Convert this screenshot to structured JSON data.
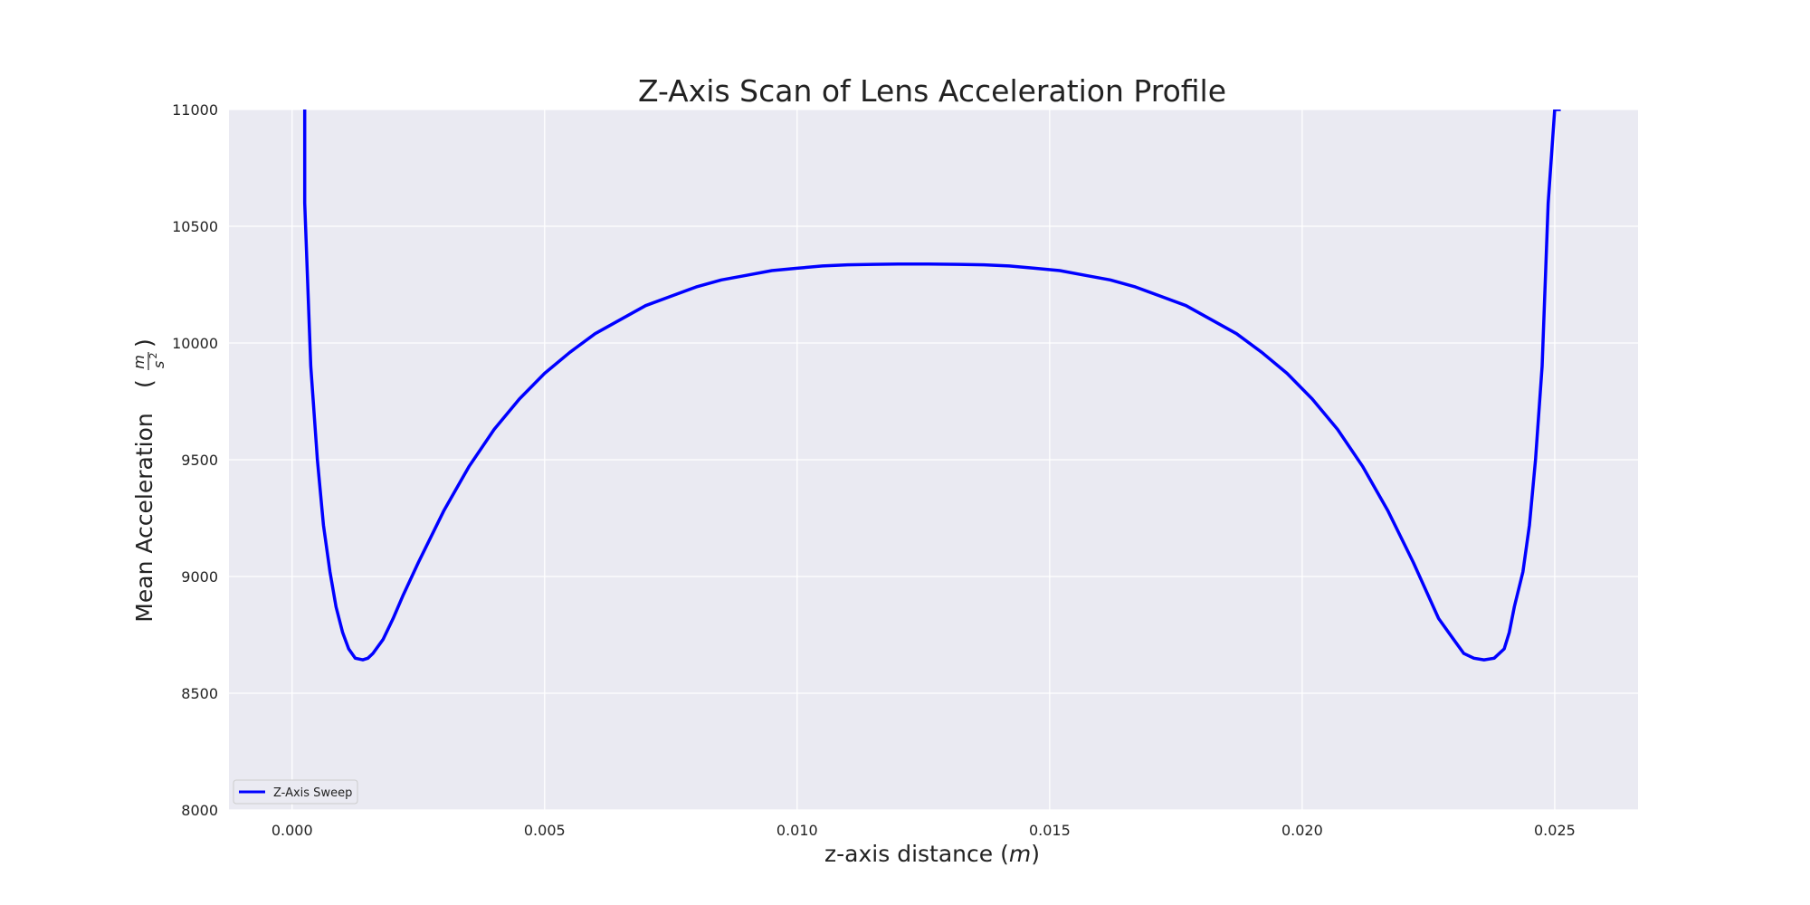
{
  "chart_data": {
    "type": "line",
    "title": "Z-Axis Scan of Lens Acceleration Profile",
    "xlabel": "z-axis distance",
    "xlabel_unit": "m",
    "ylabel": "Mean Acceleration",
    "ylabel_unit": {
      "numerator": "m",
      "denominator": "s",
      "exponent": "2"
    },
    "xlim": [
      -0.00125,
      0.02665
    ],
    "ylim": [
      8000,
      11000
    ],
    "xticks": [
      "0.000",
      "0.005",
      "0.010",
      "0.015",
      "0.020",
      "0.025"
    ],
    "xtick_values": [
      0.0,
      0.005,
      0.01,
      0.015,
      0.02,
      0.025
    ],
    "yticks": [
      "8000",
      "8500",
      "9000",
      "9500",
      "10000",
      "10500",
      "11000"
    ],
    "ytick_values": [
      8000,
      8500,
      9000,
      9500,
      10000,
      10500,
      11000
    ],
    "grid": true,
    "legend_position": "lower-left",
    "series": [
      {
        "name": "Z-Axis Sweep",
        "color": "#0000ff",
        "x": [
          0.00025,
          0.00025,
          0.00037,
          0.0005,
          0.00062,
          0.00075,
          0.00087,
          0.001,
          0.00112,
          0.00125,
          0.0014,
          0.0015,
          0.0016,
          0.0018,
          0.002,
          0.0022,
          0.0025,
          0.003,
          0.0035,
          0.004,
          0.0045,
          0.005,
          0.0055,
          0.006,
          0.0065,
          0.007,
          0.0075,
          0.008,
          0.0085,
          0.009,
          0.0095,
          0.01,
          0.0105,
          0.011,
          0.0115,
          0.012,
          0.0126,
          0.0132,
          0.0137,
          0.0142,
          0.0147,
          0.0152,
          0.0157,
          0.0162,
          0.0167,
          0.0172,
          0.0177,
          0.0182,
          0.0187,
          0.0192,
          0.0197,
          0.0202,
          0.0207,
          0.0212,
          0.0217,
          0.0222,
          0.0227,
          0.023,
          0.0232,
          0.0234,
          0.0236,
          0.0238,
          0.024,
          0.0241,
          0.0242,
          0.02437,
          0.0245,
          0.02462,
          0.02475,
          0.02487,
          0.025,
          0.02512,
          0.02512
        ],
        "y": [
          11000,
          10600,
          9900,
          9500,
          9220,
          9020,
          8870,
          8760,
          8690,
          8650,
          8643,
          8650,
          8670,
          8730,
          8820,
          8920,
          9060,
          9280,
          9470,
          9630,
          9760,
          9870,
          9960,
          10040,
          10100,
          10160,
          10200,
          10240,
          10270,
          10290,
          10310,
          10320,
          10330,
          10335,
          10337,
          10338,
          10338,
          10337,
          10335,
          10330,
          10320,
          10310,
          10290,
          10270,
          10240,
          10200,
          10160,
          10100,
          10040,
          9960,
          9870,
          9760,
          9630,
          9470,
          9280,
          9060,
          8820,
          8730,
          8670,
          8650,
          8643,
          8650,
          8690,
          8760,
          8870,
          9020,
          9220,
          9500,
          9900,
          10600,
          11000,
          11000,
          11000
        ]
      }
    ]
  }
}
